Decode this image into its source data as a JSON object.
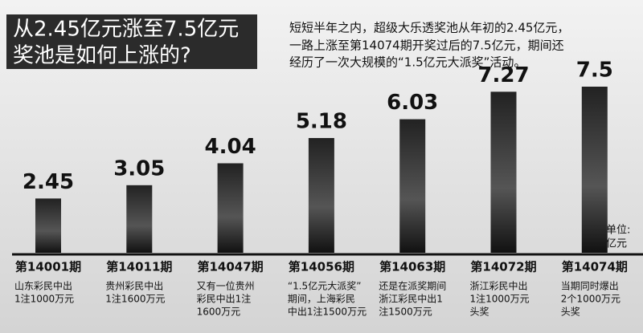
{
  "chart_data": {
    "type": "bar",
    "title": [
      "从2.45亿元涨至7.5亿元",
      "奖池是如何上涨的?"
    ],
    "subtitle": [
      "短短半年之内，超级大乐透奖池从年初的2.45亿元，",
      "一路上涨至第14074期开奖过后的7.5亿元，期间还",
      "经历了一次大规模的“1.5亿元大派奖”活动。"
    ],
    "unit": [
      "单位:",
      "亿元"
    ],
    "categories": [
      "第14001期",
      "第14011期",
      "第14047期",
      "第14056期",
      "第14063期",
      "第14072期",
      "第14074期"
    ],
    "values": [
      2.45,
      3.05,
      4.04,
      5.18,
      6.03,
      7.27,
      7.5
    ],
    "annotations": [
      [
        "山东彩民中出",
        "1注1000万元"
      ],
      [
        "贵州彩民中出",
        "1注1600万元"
      ],
      [
        "又有一位贵州",
        "彩民中出1注",
        "1600万元"
      ],
      [
        "“1.5亿元大派奖”",
        "期间，上海彩民",
        "中出1注1500万元"
      ],
      [
        "还是在派奖期间",
        "浙江彩民中出1",
        "注1500万元"
      ],
      [
        "浙江彩民中出",
        "1注1000万元",
        "头奖"
      ],
      [
        "当期同时爆出",
        "2个1000万元",
        "头奖"
      ]
    ],
    "color": "#2a2a2a"
  }
}
